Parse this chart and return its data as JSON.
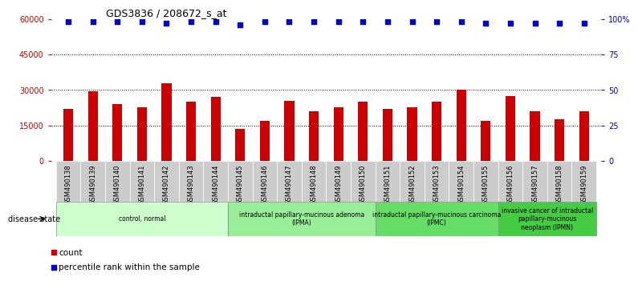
{
  "title": "GDS3836 / 208672_s_at",
  "samples": [
    "GSM490138",
    "GSM490139",
    "GSM490140",
    "GSM490141",
    "GSM490142",
    "GSM490143",
    "GSM490144",
    "GSM490145",
    "GSM490146",
    "GSM490147",
    "GSM490148",
    "GSM490149",
    "GSM490150",
    "GSM490151",
    "GSM490152",
    "GSM490153",
    "GSM490154",
    "GSM490155",
    "GSM490156",
    "GSM490157",
    "GSM490158",
    "GSM490159"
  ],
  "counts": [
    22000,
    29500,
    24000,
    22500,
    33000,
    25000,
    27000,
    13500,
    17000,
    25500,
    21000,
    22500,
    25000,
    22000,
    22500,
    25000,
    30000,
    17000,
    27500,
    21000,
    17500,
    21000
  ],
  "percentile": [
    98,
    98,
    98,
    98,
    97,
    98,
    98,
    96,
    98,
    98,
    98,
    98,
    98,
    98,
    98,
    98,
    98,
    97,
    97,
    97,
    97,
    97
  ],
  "bar_color": "#cc0000",
  "dot_color": "#0000cc",
  "ylim_left": [
    0,
    60000
  ],
  "ylim_right": [
    0,
    100
  ],
  "yticks_left": [
    0,
    15000,
    30000,
    45000,
    60000
  ],
  "yticks_right": [
    0,
    25,
    50,
    75,
    100
  ],
  "yticklabels_right": [
    "0",
    "25",
    "50",
    "75",
    "100%"
  ],
  "groups": [
    {
      "label": "control, normal",
      "start": 0,
      "end": 7,
      "color": "#ccffcc"
    },
    {
      "label": "intraductal papillary-mucinous adenoma\n(IPMA)",
      "start": 7,
      "end": 13,
      "color": "#99ee99"
    },
    {
      "label": "intraductal papillary-mucinous carcinoma\n(IPMC)",
      "start": 13,
      "end": 18,
      "color": "#66dd66"
    },
    {
      "label": "invasive cancer of intraductal\npapillary-mucinous\nneoplasm (IPMN)",
      "start": 18,
      "end": 22,
      "color": "#44cc44"
    }
  ],
  "legend_count_label": "count",
  "legend_pct_label": "percentile rank within the sample",
  "disease_state_label": "disease state",
  "background_color": "#ffffff",
  "plot_bg_color": "#ffffff",
  "tick_bg_color": "#cccccc",
  "dotted_line_color": "#000000"
}
